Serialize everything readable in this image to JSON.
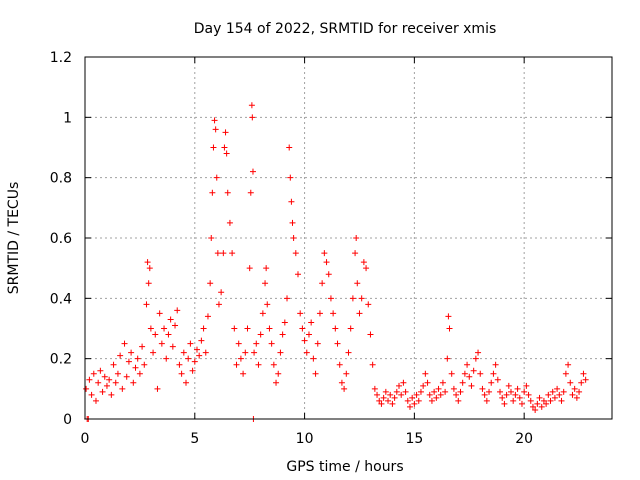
{
  "chart_data": {
    "type": "scatter",
    "title": "Day 154 of 2022, SRMTID for receiver xmis",
    "xlabel": "GPS time / hours",
    "ylabel": "SRMTID / TECUs",
    "xlim": [
      0,
      24
    ],
    "ylim": [
      0,
      1.2
    ],
    "xticks": [
      0,
      5,
      10,
      15,
      20
    ],
    "xtick_labels": [
      "0",
      "5",
      "10",
      "15",
      "20"
    ],
    "yticks": [
      0,
      0.2,
      0.4,
      0.6,
      0.8,
      1.0,
      1.2
    ],
    "ytick_labels": [
      "0",
      "0.2",
      "0.4",
      "0.6",
      "0.8",
      "1",
      "1.2"
    ],
    "grid": true,
    "marker": "plus",
    "series": [
      {
        "name": "SRMTID",
        "color": "#ff0000",
        "points": [
          [
            0.05,
            0.1
          ],
          [
            0.1,
            0.0
          ],
          [
            0.15,
            0.0
          ],
          [
            0.2,
            0.13
          ],
          [
            0.3,
            0.08
          ],
          [
            0.4,
            0.15
          ],
          [
            0.5,
            0.06
          ],
          [
            0.6,
            0.12
          ],
          [
            0.7,
            0.16
          ],
          [
            0.8,
            0.09
          ],
          [
            0.9,
            0.14
          ],
          [
            1.0,
            0.11
          ],
          [
            1.1,
            0.13
          ],
          [
            1.2,
            0.08
          ],
          [
            1.3,
            0.18
          ],
          [
            1.4,
            0.12
          ],
          [
            1.5,
            0.15
          ],
          [
            1.6,
            0.21
          ],
          [
            1.7,
            0.1
          ],
          [
            1.8,
            0.25
          ],
          [
            1.9,
            0.14
          ],
          [
            2.0,
            0.19
          ],
          [
            2.1,
            0.22
          ],
          [
            2.2,
            0.12
          ],
          [
            2.3,
            0.17
          ],
          [
            2.4,
            0.2
          ],
          [
            2.5,
            0.15
          ],
          [
            2.6,
            0.24
          ],
          [
            2.7,
            0.18
          ],
          [
            2.8,
            0.38
          ],
          [
            2.85,
            0.52
          ],
          [
            2.9,
            0.45
          ],
          [
            2.95,
            0.5
          ],
          [
            3.0,
            0.3
          ],
          [
            3.1,
            0.22
          ],
          [
            3.2,
            0.28
          ],
          [
            3.3,
            0.1
          ],
          [
            3.4,
            0.35
          ],
          [
            3.5,
            0.25
          ],
          [
            3.6,
            0.3
          ],
          [
            3.7,
            0.2
          ],
          [
            3.8,
            0.28
          ],
          [
            3.9,
            0.33
          ],
          [
            4.0,
            0.24
          ],
          [
            4.1,
            0.31
          ],
          [
            4.2,
            0.36
          ],
          [
            4.3,
            0.18
          ],
          [
            4.4,
            0.15
          ],
          [
            4.5,
            0.22
          ],
          [
            4.6,
            0.12
          ],
          [
            4.7,
            0.2
          ],
          [
            4.8,
            0.25
          ],
          [
            4.9,
            0.16
          ],
          [
            5.0,
            0.19
          ],
          [
            5.1,
            0.23
          ],
          [
            5.2,
            0.21
          ],
          [
            5.3,
            0.26
          ],
          [
            5.4,
            0.3
          ],
          [
            5.5,
            0.22
          ],
          [
            5.6,
            0.34
          ],
          [
            5.7,
            0.45
          ],
          [
            5.75,
            0.6
          ],
          [
            5.8,
            0.75
          ],
          [
            5.85,
            0.9
          ],
          [
            5.9,
            0.99
          ],
          [
            5.95,
            0.96
          ],
          [
            6.0,
            0.8
          ],
          [
            6.05,
            0.55
          ],
          [
            6.1,
            0.38
          ],
          [
            6.2,
            0.42
          ],
          [
            6.3,
            0.55
          ],
          [
            6.35,
            0.9
          ],
          [
            6.4,
            0.95
          ],
          [
            6.45,
            0.88
          ],
          [
            6.5,
            0.75
          ],
          [
            6.6,
            0.65
          ],
          [
            6.7,
            0.55
          ],
          [
            6.8,
            0.3
          ],
          [
            6.9,
            0.18
          ],
          [
            7.0,
            0.25
          ],
          [
            7.1,
            0.2
          ],
          [
            7.2,
            0.15
          ],
          [
            7.3,
            0.22
          ],
          [
            7.4,
            0.3
          ],
          [
            7.5,
            0.5
          ],
          [
            7.55,
            0.75
          ],
          [
            7.6,
            1.04
          ],
          [
            7.62,
            1.0
          ],
          [
            7.65,
            0.82
          ],
          [
            7.67,
            0.0
          ],
          [
            7.7,
            0.22
          ],
          [
            7.8,
            0.25
          ],
          [
            7.9,
            0.18
          ],
          [
            8.0,
            0.28
          ],
          [
            8.1,
            0.35
          ],
          [
            8.2,
            0.45
          ],
          [
            8.25,
            0.5
          ],
          [
            8.3,
            0.38
          ],
          [
            8.4,
            0.3
          ],
          [
            8.5,
            0.25
          ],
          [
            8.6,
            0.18
          ],
          [
            8.7,
            0.12
          ],
          [
            8.8,
            0.15
          ],
          [
            8.9,
            0.22
          ],
          [
            9.0,
            0.28
          ],
          [
            9.1,
            0.32
          ],
          [
            9.2,
            0.4
          ],
          [
            9.3,
            0.9
          ],
          [
            9.35,
            0.8
          ],
          [
            9.4,
            0.72
          ],
          [
            9.45,
            0.65
          ],
          [
            9.5,
            0.6
          ],
          [
            9.6,
            0.55
          ],
          [
            9.7,
            0.48
          ],
          [
            9.8,
            0.35
          ],
          [
            9.9,
            0.3
          ],
          [
            10.0,
            0.26
          ],
          [
            10.1,
            0.22
          ],
          [
            10.2,
            0.28
          ],
          [
            10.3,
            0.32
          ],
          [
            10.4,
            0.2
          ],
          [
            10.5,
            0.15
          ],
          [
            10.6,
            0.25
          ],
          [
            10.7,
            0.35
          ],
          [
            10.8,
            0.45
          ],
          [
            10.9,
            0.55
          ],
          [
            11.0,
            0.52
          ],
          [
            11.1,
            0.48
          ],
          [
            11.2,
            0.4
          ],
          [
            11.3,
            0.35
          ],
          [
            11.4,
            0.3
          ],
          [
            11.5,
            0.25
          ],
          [
            11.6,
            0.18
          ],
          [
            11.7,
            0.12
          ],
          [
            11.8,
            0.1
          ],
          [
            11.9,
            0.15
          ],
          [
            12.0,
            0.22
          ],
          [
            12.1,
            0.3
          ],
          [
            12.2,
            0.4
          ],
          [
            12.3,
            0.55
          ],
          [
            12.35,
            0.6
          ],
          [
            12.4,
            0.45
          ],
          [
            12.5,
            0.35
          ],
          [
            12.6,
            0.4
          ],
          [
            12.7,
            0.52
          ],
          [
            12.8,
            0.5
          ],
          [
            12.9,
            0.38
          ],
          [
            13.0,
            0.28
          ],
          [
            13.1,
            0.18
          ],
          [
            13.2,
            0.1
          ],
          [
            13.3,
            0.08
          ],
          [
            13.4,
            0.06
          ],
          [
            13.5,
            0.05
          ],
          [
            13.6,
            0.07
          ],
          [
            13.7,
            0.09
          ],
          [
            13.8,
            0.06
          ],
          [
            13.9,
            0.08
          ],
          [
            14.0,
            0.05
          ],
          [
            14.1,
            0.07
          ],
          [
            14.2,
            0.09
          ],
          [
            14.3,
            0.11
          ],
          [
            14.4,
            0.08
          ],
          [
            14.5,
            0.12
          ],
          [
            14.6,
            0.09
          ],
          [
            14.7,
            0.06
          ],
          [
            14.8,
            0.04
          ],
          [
            14.9,
            0.07
          ],
          [
            15.0,
            0.05
          ],
          [
            15.1,
            0.08
          ],
          [
            15.2,
            0.06
          ],
          [
            15.3,
            0.09
          ],
          [
            15.4,
            0.11
          ],
          [
            15.5,
            0.15
          ],
          [
            15.6,
            0.12
          ],
          [
            15.7,
            0.08
          ],
          [
            15.8,
            0.06
          ],
          [
            15.9,
            0.09
          ],
          [
            16.0,
            0.07
          ],
          [
            16.1,
            0.1
          ],
          [
            16.2,
            0.08
          ],
          [
            16.3,
            0.12
          ],
          [
            16.4,
            0.09
          ],
          [
            16.5,
            0.2
          ],
          [
            16.55,
            0.34
          ],
          [
            16.6,
            0.3
          ],
          [
            16.7,
            0.15
          ],
          [
            16.8,
            0.1
          ],
          [
            16.9,
            0.08
          ],
          [
            17.0,
            0.06
          ],
          [
            17.1,
            0.09
          ],
          [
            17.2,
            0.12
          ],
          [
            17.3,
            0.15
          ],
          [
            17.4,
            0.18
          ],
          [
            17.5,
            0.14
          ],
          [
            17.6,
            0.11
          ],
          [
            17.7,
            0.16
          ],
          [
            17.8,
            0.2
          ],
          [
            17.9,
            0.22
          ],
          [
            18.0,
            0.15
          ],
          [
            18.1,
            0.1
          ],
          [
            18.2,
            0.08
          ],
          [
            18.3,
            0.06
          ],
          [
            18.4,
            0.09
          ],
          [
            18.5,
            0.12
          ],
          [
            18.6,
            0.15
          ],
          [
            18.7,
            0.18
          ],
          [
            18.8,
            0.13
          ],
          [
            18.9,
            0.09
          ],
          [
            19.0,
            0.07
          ],
          [
            19.1,
            0.05
          ],
          [
            19.2,
            0.08
          ],
          [
            19.3,
            0.11
          ],
          [
            19.4,
            0.09
          ],
          [
            19.5,
            0.06
          ],
          [
            19.6,
            0.08
          ],
          [
            19.7,
            0.1
          ],
          [
            19.8,
            0.07
          ],
          [
            19.9,
            0.05
          ],
          [
            20.0,
            0.09
          ],
          [
            20.1,
            0.11
          ],
          [
            20.2,
            0.08
          ],
          [
            20.3,
            0.06
          ],
          [
            20.4,
            0.04
          ],
          [
            20.5,
            0.03
          ],
          [
            20.6,
            0.05
          ],
          [
            20.7,
            0.07
          ],
          [
            20.8,
            0.04
          ],
          [
            20.9,
            0.06
          ],
          [
            21.0,
            0.05
          ],
          [
            21.1,
            0.08
          ],
          [
            21.2,
            0.06
          ],
          [
            21.3,
            0.09
          ],
          [
            21.4,
            0.07
          ],
          [
            21.5,
            0.1
          ],
          [
            21.6,
            0.08
          ],
          [
            21.7,
            0.06
          ],
          [
            21.8,
            0.09
          ],
          [
            21.9,
            0.15
          ],
          [
            22.0,
            0.18
          ],
          [
            22.1,
            0.12
          ],
          [
            22.2,
            0.08
          ],
          [
            22.3,
            0.1
          ],
          [
            22.4,
            0.07
          ],
          [
            22.5,
            0.09
          ],
          [
            22.6,
            0.12
          ],
          [
            22.7,
            0.15
          ],
          [
            22.8,
            0.13
          ]
        ]
      }
    ]
  }
}
